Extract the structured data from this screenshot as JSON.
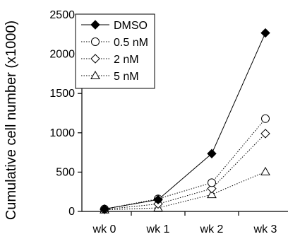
{
  "chart_data": {
    "type": "line",
    "ylabel": "Cumulative cell number (x1000)",
    "xlabel": "",
    "categories": [
      "wk 0",
      "wk 1",
      "wk 2",
      "wk 3"
    ],
    "ylim": [
      0,
      2500
    ],
    "yticks": [
      0,
      500,
      1000,
      1500,
      2000,
      2500
    ],
    "grid": false,
    "legend_position": "top-left",
    "series": [
      {
        "name": "DMSO",
        "marker": "filled-diamond",
        "line": "solid",
        "values": [
          30,
          150,
          735,
          2270
        ]
      },
      {
        "name": "0.5 nM",
        "marker": "open-circle",
        "line": "dotted",
        "values": [
          30,
          160,
          365,
          1180
        ]
      },
      {
        "name": "2 nM",
        "marker": "open-diamond",
        "line": "dotted",
        "values": [
          25,
          95,
          290,
          990
        ]
      },
      {
        "name": "5 nM",
        "marker": "open-triangle",
        "line": "dotted",
        "values": [
          20,
          45,
          215,
          505
        ]
      }
    ]
  }
}
